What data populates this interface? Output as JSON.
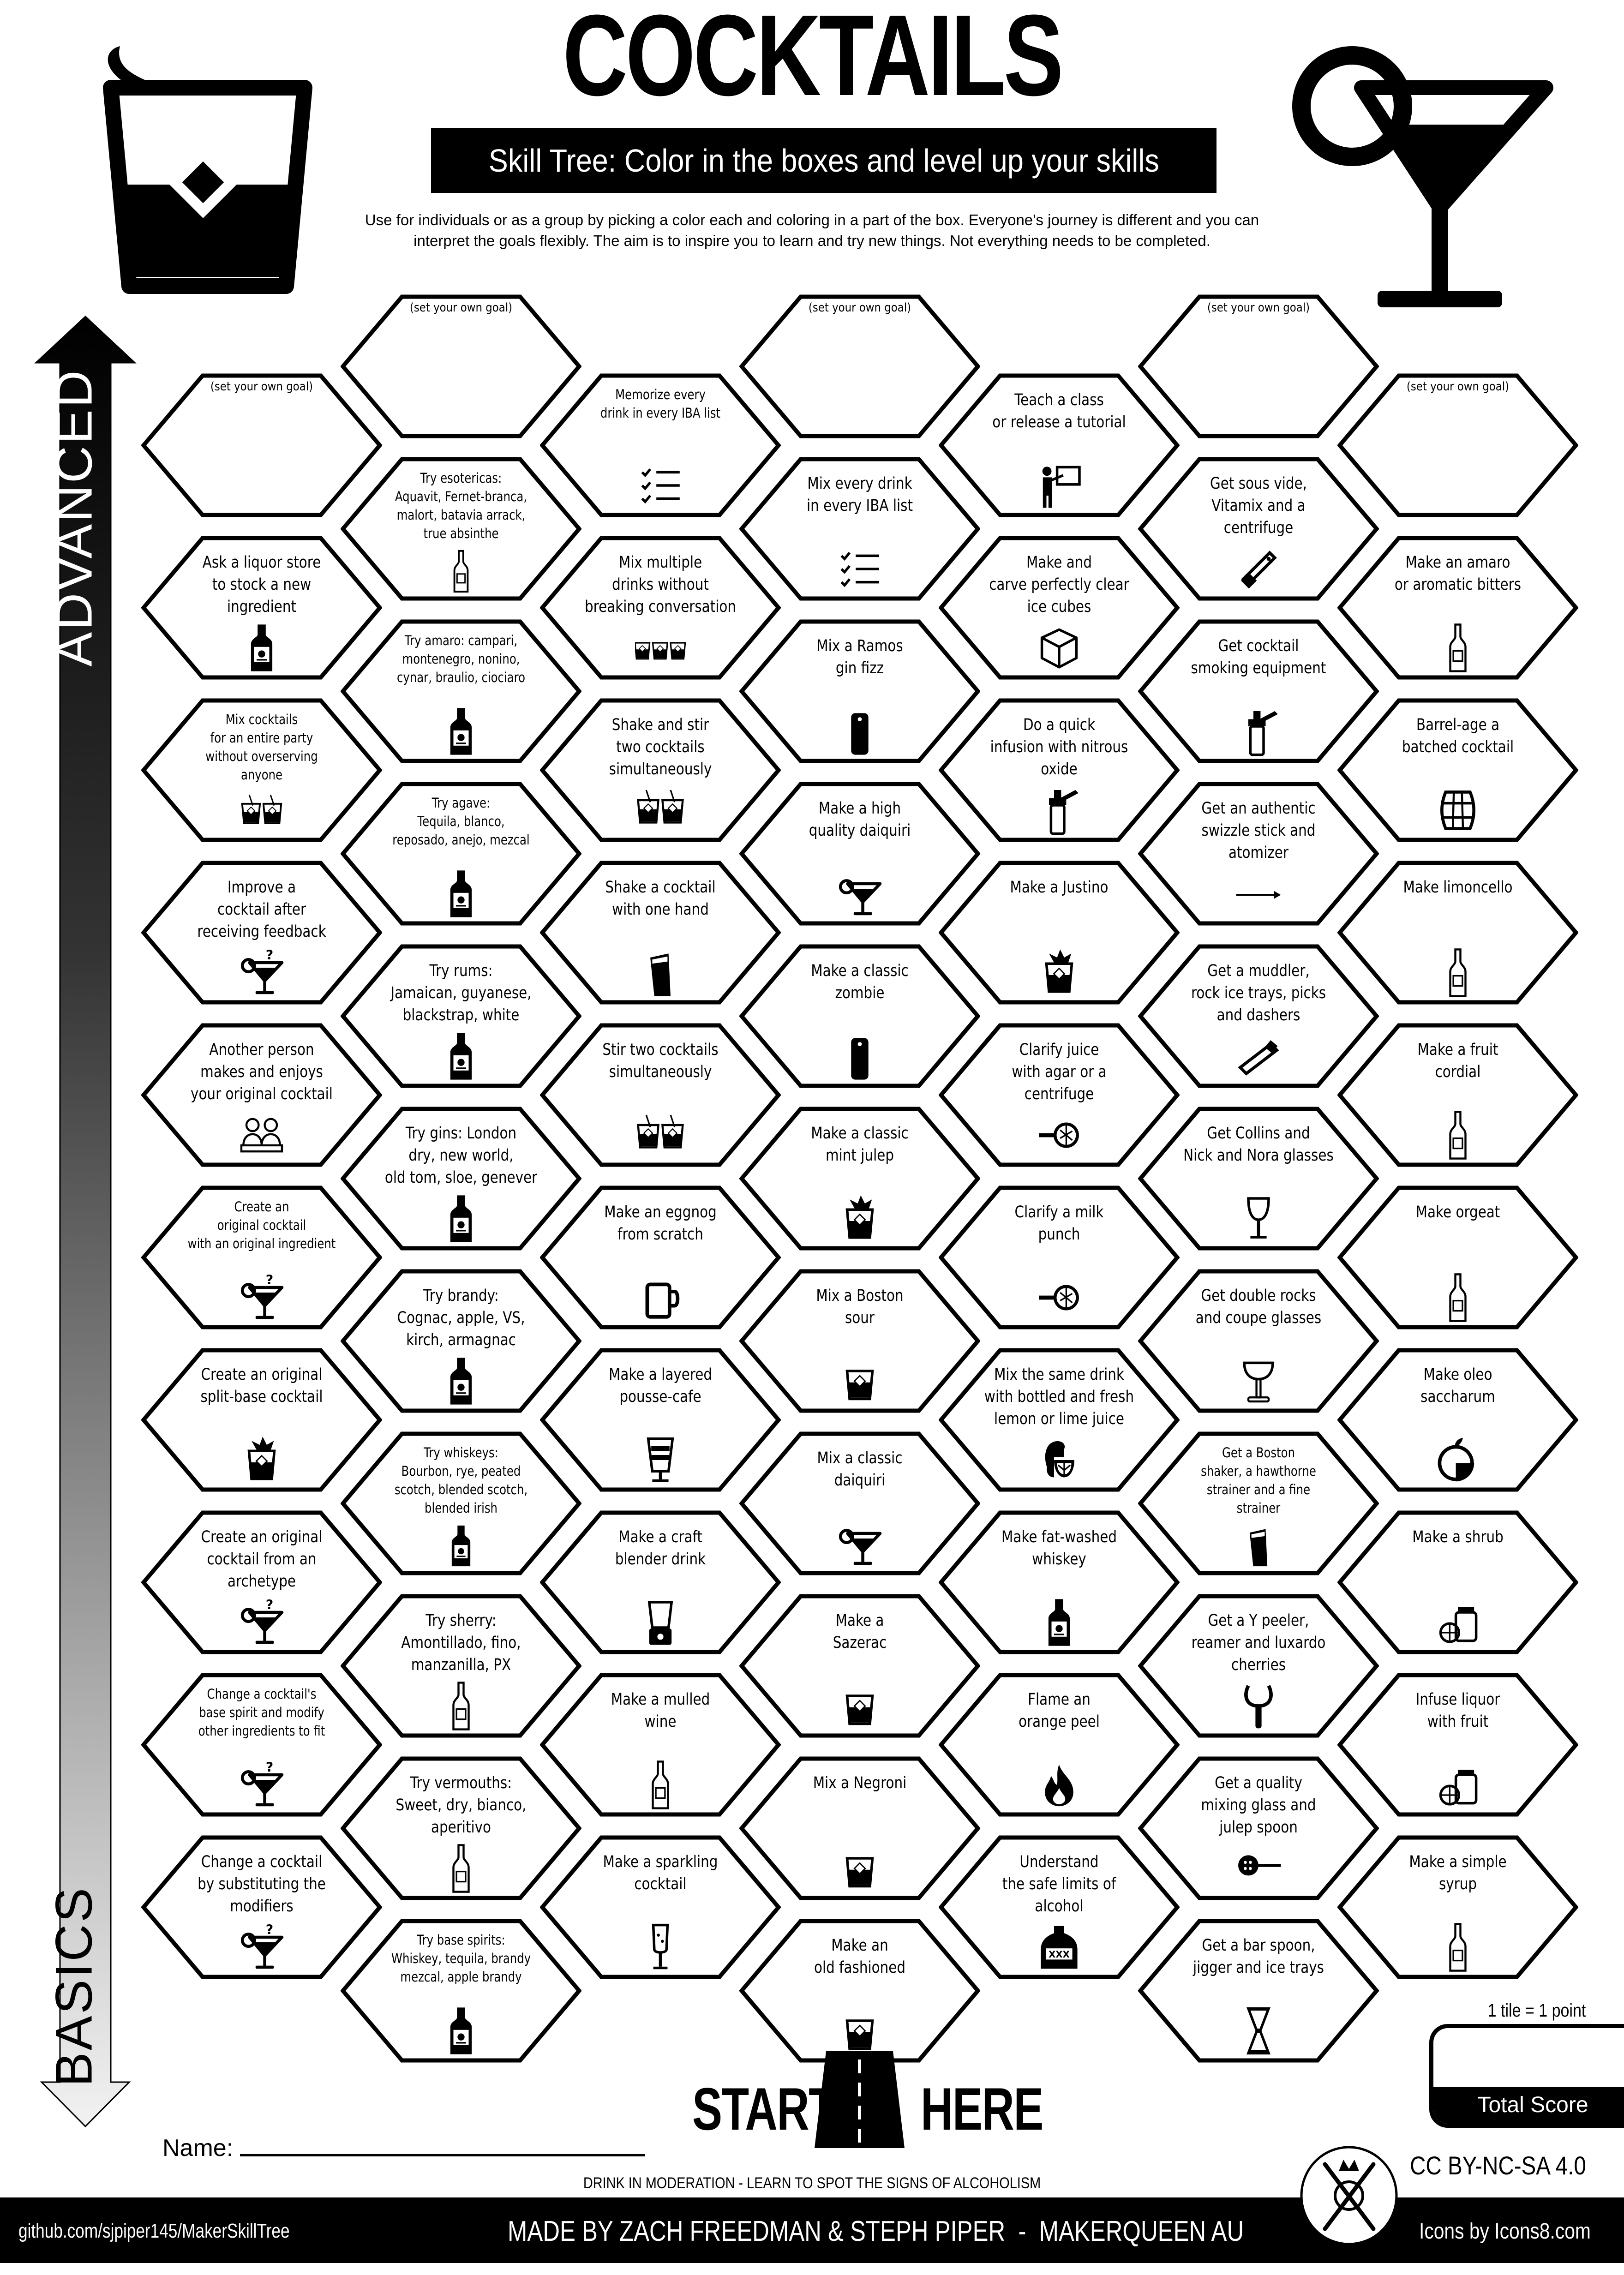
{
  "header": {
    "title": "COCKTAILS",
    "subtitle": "Skill Tree:  Color in the boxes and level up your skills",
    "description_line1": "Use for individuals or as a group by picking a color each and coloring in a part of the box.  Everyone's journey is different and you can",
    "description_line2": "interpret the goals flexibly.  The aim is to inspire you to learn and try new things. Not everything needs to be completed."
  },
  "axis": {
    "top": "ADVANCED",
    "bottom": "BASICS"
  },
  "columns": [
    [
      {
        "goal": "(set your own goal)"
      },
      {
        "text": "Ask a liquor store\nto stock a new\ningredient",
        "icon": "whiskey-bottle"
      },
      {
        "text": "Mix cocktails\nfor an entire party\nwithout overserving\nanyone",
        "icon": "two-rocks-glasses"
      },
      {
        "text": "Improve a\ncocktail after\nreceiving feedback",
        "icon": "cocktail-question"
      },
      {
        "text": "Another person\nmakes and enjoys\nyour original cocktail",
        "icon": "people"
      },
      {
        "text": "Create an\noriginal cocktail\nwith an original ingredient",
        "icon": "cocktail-question"
      },
      {
        "text": "Create an original\nsplit-base cocktail",
        "icon": "rocks-garnish"
      },
      {
        "text": "Create an original\ncocktail from an\narchetype",
        "icon": "cocktail-question"
      },
      {
        "text": "Change a cocktail's\nbase spirit and modify\nother ingredients to fit",
        "icon": "cocktail-question"
      },
      {
        "text": "Change a cocktail\nby substituting the\nmodifiers",
        "icon": "cocktail-question"
      }
    ],
    [
      {
        "goal": "(set your own goal)"
      },
      {
        "text": "Try esotericas:\nAquavit, Fernet-branca,\nmalort, batavia arrack,\ntrue absinthe",
        "icon": "bottle"
      },
      {
        "text": "Try amaro: campari,\nmontenegro, nonino,\ncynar, braulio, ciociaro",
        "icon": "whiskey-bottle"
      },
      {
        "text": "Try agave:\nTequila, blanco,\nreposado, anejo, mezcal",
        "icon": "whiskey-bottle"
      },
      {
        "text": "Try rums:\nJamaican, guyanese,\nblackstrap, white",
        "icon": "whiskey-bottle"
      },
      {
        "text": "Try gins: London\ndry, new world,\nold tom, sloe, genever",
        "icon": "whiskey-bottle"
      },
      {
        "text": "Try brandy:\nCognac, apple, VS,\nkirch, armagnac",
        "icon": "whiskey-bottle"
      },
      {
        "text": "Try whiskeys:\nBourbon, rye, peated\nscotch, blended scotch,\nblended irish",
        "icon": "whiskey-bottle"
      },
      {
        "text": "Try sherry:\nAmontillado, fino,\nmanzanilla, PX",
        "icon": "bottle"
      },
      {
        "text": "Try vermouths:\nSweet, dry, bianco,\naperitivo",
        "icon": "bottle"
      },
      {
        "text": "Try base spirits:\nWhiskey, tequila, brandy\nmezcal,  apple brandy",
        "icon": "whiskey-bottle"
      }
    ],
    [
      {
        "text": "Memorize every\ndrink in every IBA list",
        "icon": "checklist"
      },
      {
        "text": "Mix multiple\ndrinks without\nbreaking conversation",
        "icon": "three-rocks-glasses"
      },
      {
        "text": "Shake and stir\ntwo cocktails\nsimultaneously",
        "icon": "two-rocks-glasses"
      },
      {
        "text": "Shake a cocktail\nwith one hand",
        "icon": "shaker"
      },
      {
        "text": "Stir two cocktails\nsimultaneously",
        "icon": "two-rocks-glasses"
      },
      {
        "text": "Make an eggnog\nfrom scratch",
        "icon": "mug"
      },
      {
        "text": "Make a layered\npousse-cafe",
        "icon": "layered-glass"
      },
      {
        "text": "Make a craft\nblender drink",
        "icon": "blender"
      },
      {
        "text": "Make a mulled\nwine",
        "icon": "bottle"
      },
      {
        "text": "Make a sparkling\ncocktail",
        "icon": "champagne-glass"
      }
    ],
    [
      {
        "goal": "(set your own goal)"
      },
      {
        "text": "Mix every drink\nin every IBA list",
        "icon": "checklist"
      },
      {
        "text": "Mix a Ramos\ngin fizz",
        "icon": "tall-glass"
      },
      {
        "text": "Make a high\nquality daiquiri",
        "icon": "cocktail"
      },
      {
        "text": "Make a classic\nzombie",
        "icon": "tall-glass"
      },
      {
        "text": "Make a classic\nmint julep",
        "icon": "rocks-garnish"
      },
      {
        "text": "Mix a Boston\nsour",
        "icon": "rocks-glass"
      },
      {
        "text": "Mix a classic\ndaiquiri",
        "icon": "cocktail"
      },
      {
        "text": "Make a\nSazerac",
        "icon": "rocks-glass"
      },
      {
        "text": "Mix a Negroni",
        "icon": "rocks-glass"
      },
      {
        "text": "Make an\nold fashioned",
        "icon": "rocks-glass"
      }
    ],
    [
      {
        "text": "Teach a class\nor release a tutorial",
        "icon": "teacher"
      },
      {
        "text": "Make and\ncarve perfectly clear\nice cubes",
        "icon": "ice-cube"
      },
      {
        "text": "Do a quick\ninfusion with nitrous\noxide",
        "icon": "cream-whipper"
      },
      {
        "text": "Make a Justino",
        "icon": "rocks-garnish"
      },
      {
        "text": "Clarify juice\nwith agar or a\ncentrifuge",
        "icon": "strainer"
      },
      {
        "text": "Clarify a milk\npunch",
        "icon": "strainer"
      },
      {
        "text": "Mix the same drink\nwith bottled and fresh\nlemon or lime juice",
        "icon": "lemon"
      },
      {
        "text": "Make fat-washed\nwhiskey",
        "icon": "whiskey-bottle"
      },
      {
        "text": "Flame an\norange peel",
        "icon": "flame"
      },
      {
        "text": "Understand\nthe safe limits of\nalcohol",
        "icon": "moonshine-jug"
      }
    ],
    [
      {
        "goal": "(set your own goal)"
      },
      {
        "text": "Get sous vide,\nVitamix and a\ncentrifuge",
        "icon": "sous-vide"
      },
      {
        "text": "Get cocktail\nsmoking equipment",
        "icon": "cream-whipper"
      },
      {
        "text": "Get an authentic\nswizzle stick and\natomizer",
        "icon": "swizzle-stick"
      },
      {
        "text": "Get a muddler,\nrock ice trays, picks\nand dashers",
        "icon": "muddler"
      },
      {
        "text": "Get  Collins and\nNick and Nora glasses",
        "icon": "wine-glass"
      },
      {
        "text": "Get double rocks\nand coupe glasses",
        "icon": "coupe-glass"
      },
      {
        "text": "Get a Boston\nshaker, a hawthorne\nstrainer and a fine\nstrainer",
        "icon": "shaker"
      },
      {
        "text": "Get a Y peeler,\nreamer and luxardo\ncherries",
        "icon": "peeler"
      },
      {
        "text": "Get a quality\nmixing glass and\njulep spoon",
        "icon": "julep-spoon"
      },
      {
        "text": "Get a bar spoon,\njigger and ice trays",
        "icon": "jigger"
      }
    ],
    [
      {
        "goal": "(set your own goal)"
      },
      {
        "text": "Make an amaro\nor aromatic bitters",
        "icon": "bottle"
      },
      {
        "text": "Barrel-age a\nbatched cocktail",
        "icon": "barrel"
      },
      {
        "text": "Make limoncello",
        "icon": "bottle"
      },
      {
        "text": "Make a fruit\ncordial",
        "icon": "bottle"
      },
      {
        "text": "Make orgeat",
        "icon": "bottle"
      },
      {
        "text": "Make oleo\nsaccharum",
        "icon": "orange"
      },
      {
        "text": "Make a shrub",
        "icon": "jar-fruit"
      },
      {
        "text": "Infuse liquor\nwith fruit",
        "icon": "jar-fruit"
      },
      {
        "text": "Make a simple\nsyrup",
        "icon": "bottle"
      }
    ]
  ],
  "start": {
    "left": "START",
    "right": "HERE"
  },
  "score": {
    "rule": "1 tile = 1 point",
    "label": "Total Score"
  },
  "name_label": "Name:",
  "moderation": "DRINK IN MODERATION - LEARN TO SPOT THE SIGNS OF ALCOHOLISM",
  "footer": {
    "github": "github.com/sjpiper145/MakerSkillTree",
    "made_by": "MADE BY ZACH FREEDMAN & STEPH PIPER  -  MAKERQUEEN AU",
    "icons_credit": "Icons by Icons8.com",
    "license": "CC BY-NC-SA 4.0"
  },
  "colors": {
    "ink": "#000000",
    "paper": "#ffffff",
    "arrow_bottom": "#e6e6e6"
  }
}
